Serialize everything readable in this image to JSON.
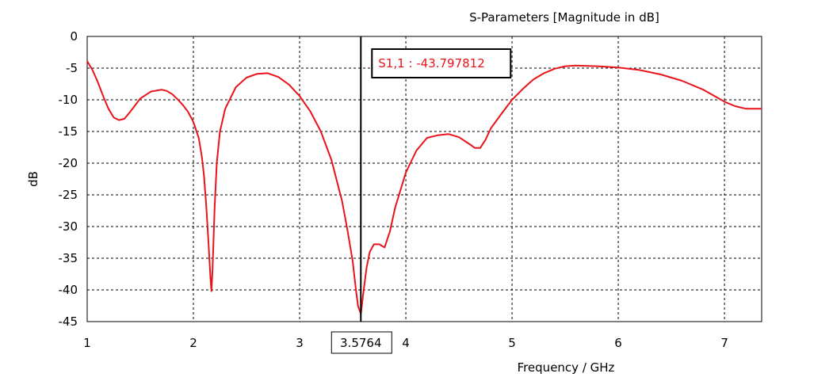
{
  "chart_data": {
    "type": "line",
    "title": "S-Parameters [Magnitude in dB]",
    "xlabel": "Frequency / GHz",
    "ylabel": "dB",
    "xlim": [
      1,
      7.35
    ],
    "ylim": [
      -45,
      0
    ],
    "x_ticks": [
      "1",
      "2",
      "3",
      "4",
      "5",
      "6",
      "7"
    ],
    "y_ticks": [
      "0",
      "-5",
      "-10",
      "-15",
      "-20",
      "-25",
      "-30",
      "-35",
      "-40",
      "-45"
    ],
    "grid": true,
    "series": [
      {
        "name": "S1,1",
        "color": "#e8141a",
        "x": [
          1.0,
          1.05,
          1.1,
          1.15,
          1.2,
          1.25,
          1.3,
          1.35,
          1.4,
          1.5,
          1.6,
          1.7,
          1.75,
          1.8,
          1.85,
          1.9,
          1.95,
          2.0,
          2.05,
          2.08,
          2.1,
          2.12,
          2.14,
          2.16,
          2.17,
          2.18,
          2.2,
          2.22,
          2.25,
          2.3,
          2.4,
          2.5,
          2.6,
          2.7,
          2.8,
          2.9,
          3.0,
          3.1,
          3.2,
          3.3,
          3.4,
          3.45,
          3.5,
          3.53,
          3.55,
          3.5764,
          3.6,
          3.63,
          3.66,
          3.7,
          3.75,
          3.8,
          3.85,
          3.9,
          4.0,
          4.1,
          4.2,
          4.3,
          4.4,
          4.5,
          4.6,
          4.65,
          4.7,
          4.75,
          4.8,
          4.9,
          5.0,
          5.1,
          5.2,
          5.3,
          5.4,
          5.5,
          5.6,
          5.8,
          6.0,
          6.2,
          6.4,
          6.6,
          6.8,
          7.0,
          7.1,
          7.2,
          7.35
        ],
        "y": [
          -3.9,
          -5.3,
          -7.2,
          -9.4,
          -11.4,
          -12.8,
          -13.2,
          -13.0,
          -12.0,
          -9.8,
          -8.7,
          -8.4,
          -8.6,
          -9.1,
          -9.9,
          -10.8,
          -11.9,
          -13.5,
          -16.0,
          -19.0,
          -22.0,
          -26.5,
          -32.0,
          -38.0,
          -40.2,
          -37.0,
          -27.0,
          -20.0,
          -15.0,
          -11.4,
          -8.0,
          -6.5,
          -5.9,
          -5.8,
          -6.4,
          -7.6,
          -9.4,
          -11.8,
          -15.0,
          -19.5,
          -26.0,
          -30.5,
          -35.5,
          -40.0,
          -42.5,
          -43.8,
          -40.5,
          -36.5,
          -34.0,
          -32.8,
          -32.8,
          -33.3,
          -30.8,
          -27.0,
          -21.5,
          -18.0,
          -16.0,
          -15.6,
          -15.4,
          -15.9,
          -17.0,
          -17.6,
          -17.6,
          -16.3,
          -14.5,
          -12.2,
          -10.0,
          -8.3,
          -6.8,
          -5.8,
          -5.1,
          -4.7,
          -4.6,
          -4.7,
          -4.9,
          -5.3,
          -6.0,
          -7.0,
          -8.4,
          -10.3,
          -11.0,
          -11.4,
          -11.4
        ]
      }
    ],
    "marker": {
      "x": 3.5764,
      "x_label": "3.5764",
      "readout": "S1,1 : -43.797812"
    }
  }
}
